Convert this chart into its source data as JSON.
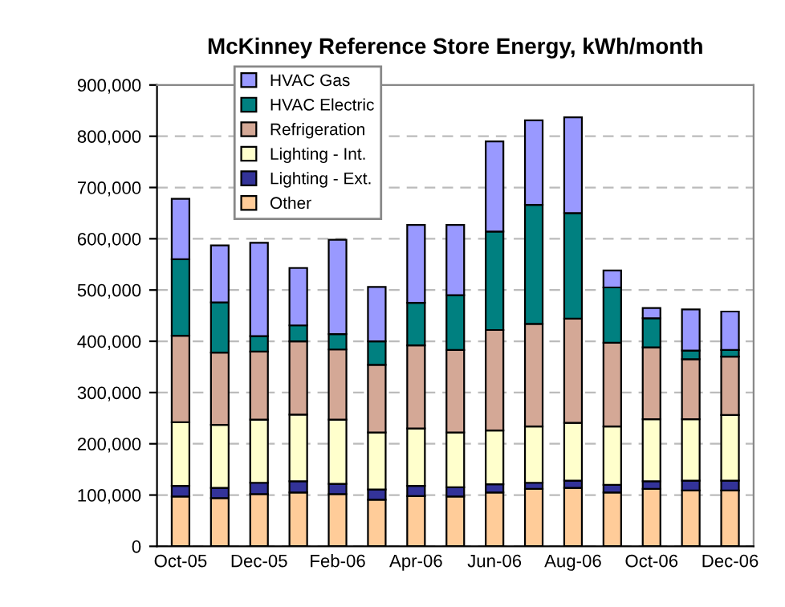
{
  "chart_data": {
    "type": "bar",
    "stacked": true,
    "title": "McKinney Reference Store Energy, kWh/month",
    "categories": [
      "Oct-05",
      null,
      "Dec-05",
      null,
      "Feb-06",
      null,
      "Apr-06",
      null,
      "Jun-06",
      null,
      "Aug-06",
      null,
      "Oct-06",
      null,
      "Dec-06"
    ],
    "series": [
      {
        "name": "Other",
        "color": "#ffcc99",
        "values": [
          97000,
          94000,
          102000,
          105000,
          102000,
          91000,
          98000,
          97000,
          105000,
          112000,
          114000,
          105000,
          112000,
          109000,
          109000
        ]
      },
      {
        "name": "Lighting - Ext.",
        "color": "#333399",
        "values": [
          21000,
          20000,
          22000,
          22000,
          20000,
          20000,
          20000,
          18000,
          16000,
          12000,
          14000,
          15000,
          15000,
          19000,
          19000
        ]
      },
      {
        "name": "Lighting - Int.",
        "color": "#ffffcc",
        "values": [
          124000,
          123000,
          123000,
          130000,
          125000,
          111000,
          112000,
          107000,
          105000,
          110000,
          113000,
          114000,
          121000,
          120000,
          128000
        ]
      },
      {
        "name": "Refrigeration",
        "color": "#d4a896",
        "values": [
          169000,
          141000,
          133000,
          143000,
          137000,
          132000,
          162000,
          161000,
          196000,
          200000,
          203000,
          163000,
          140000,
          117000,
          114000
        ]
      },
      {
        "name": "HVAC Electric",
        "color": "#008080",
        "values": [
          149000,
          98000,
          30000,
          31000,
          30000,
          46000,
          83000,
          107000,
          192000,
          232000,
          206000,
          108000,
          57000,
          17000,
          13000
        ]
      },
      {
        "name": "HVAC Gas",
        "color": "#9999ff",
        "values": [
          118000,
          111000,
          182000,
          112000,
          184000,
          106000,
          152000,
          137000,
          176000,
          165000,
          187000,
          33000,
          20000,
          80000,
          75000
        ]
      }
    ],
    "ylim": [
      0,
      900000
    ],
    "yticks": [
      {
        "value": 0,
        "label": "0"
      },
      {
        "value": 100000,
        "label": "100,000"
      },
      {
        "value": 200000,
        "label": "200,000"
      },
      {
        "value": 300000,
        "label": "300,000"
      },
      {
        "value": 400000,
        "label": "400,000"
      },
      {
        "value": 500000,
        "label": "500,000"
      },
      {
        "value": 600000,
        "label": "600,000"
      },
      {
        "value": 700000,
        "label": "700,000"
      },
      {
        "value": 800000,
        "label": "800,000"
      },
      {
        "value": 900000,
        "label": "900,000"
      }
    ],
    "grid": "y",
    "line_style": "dashed",
    "legend": "top left"
  }
}
